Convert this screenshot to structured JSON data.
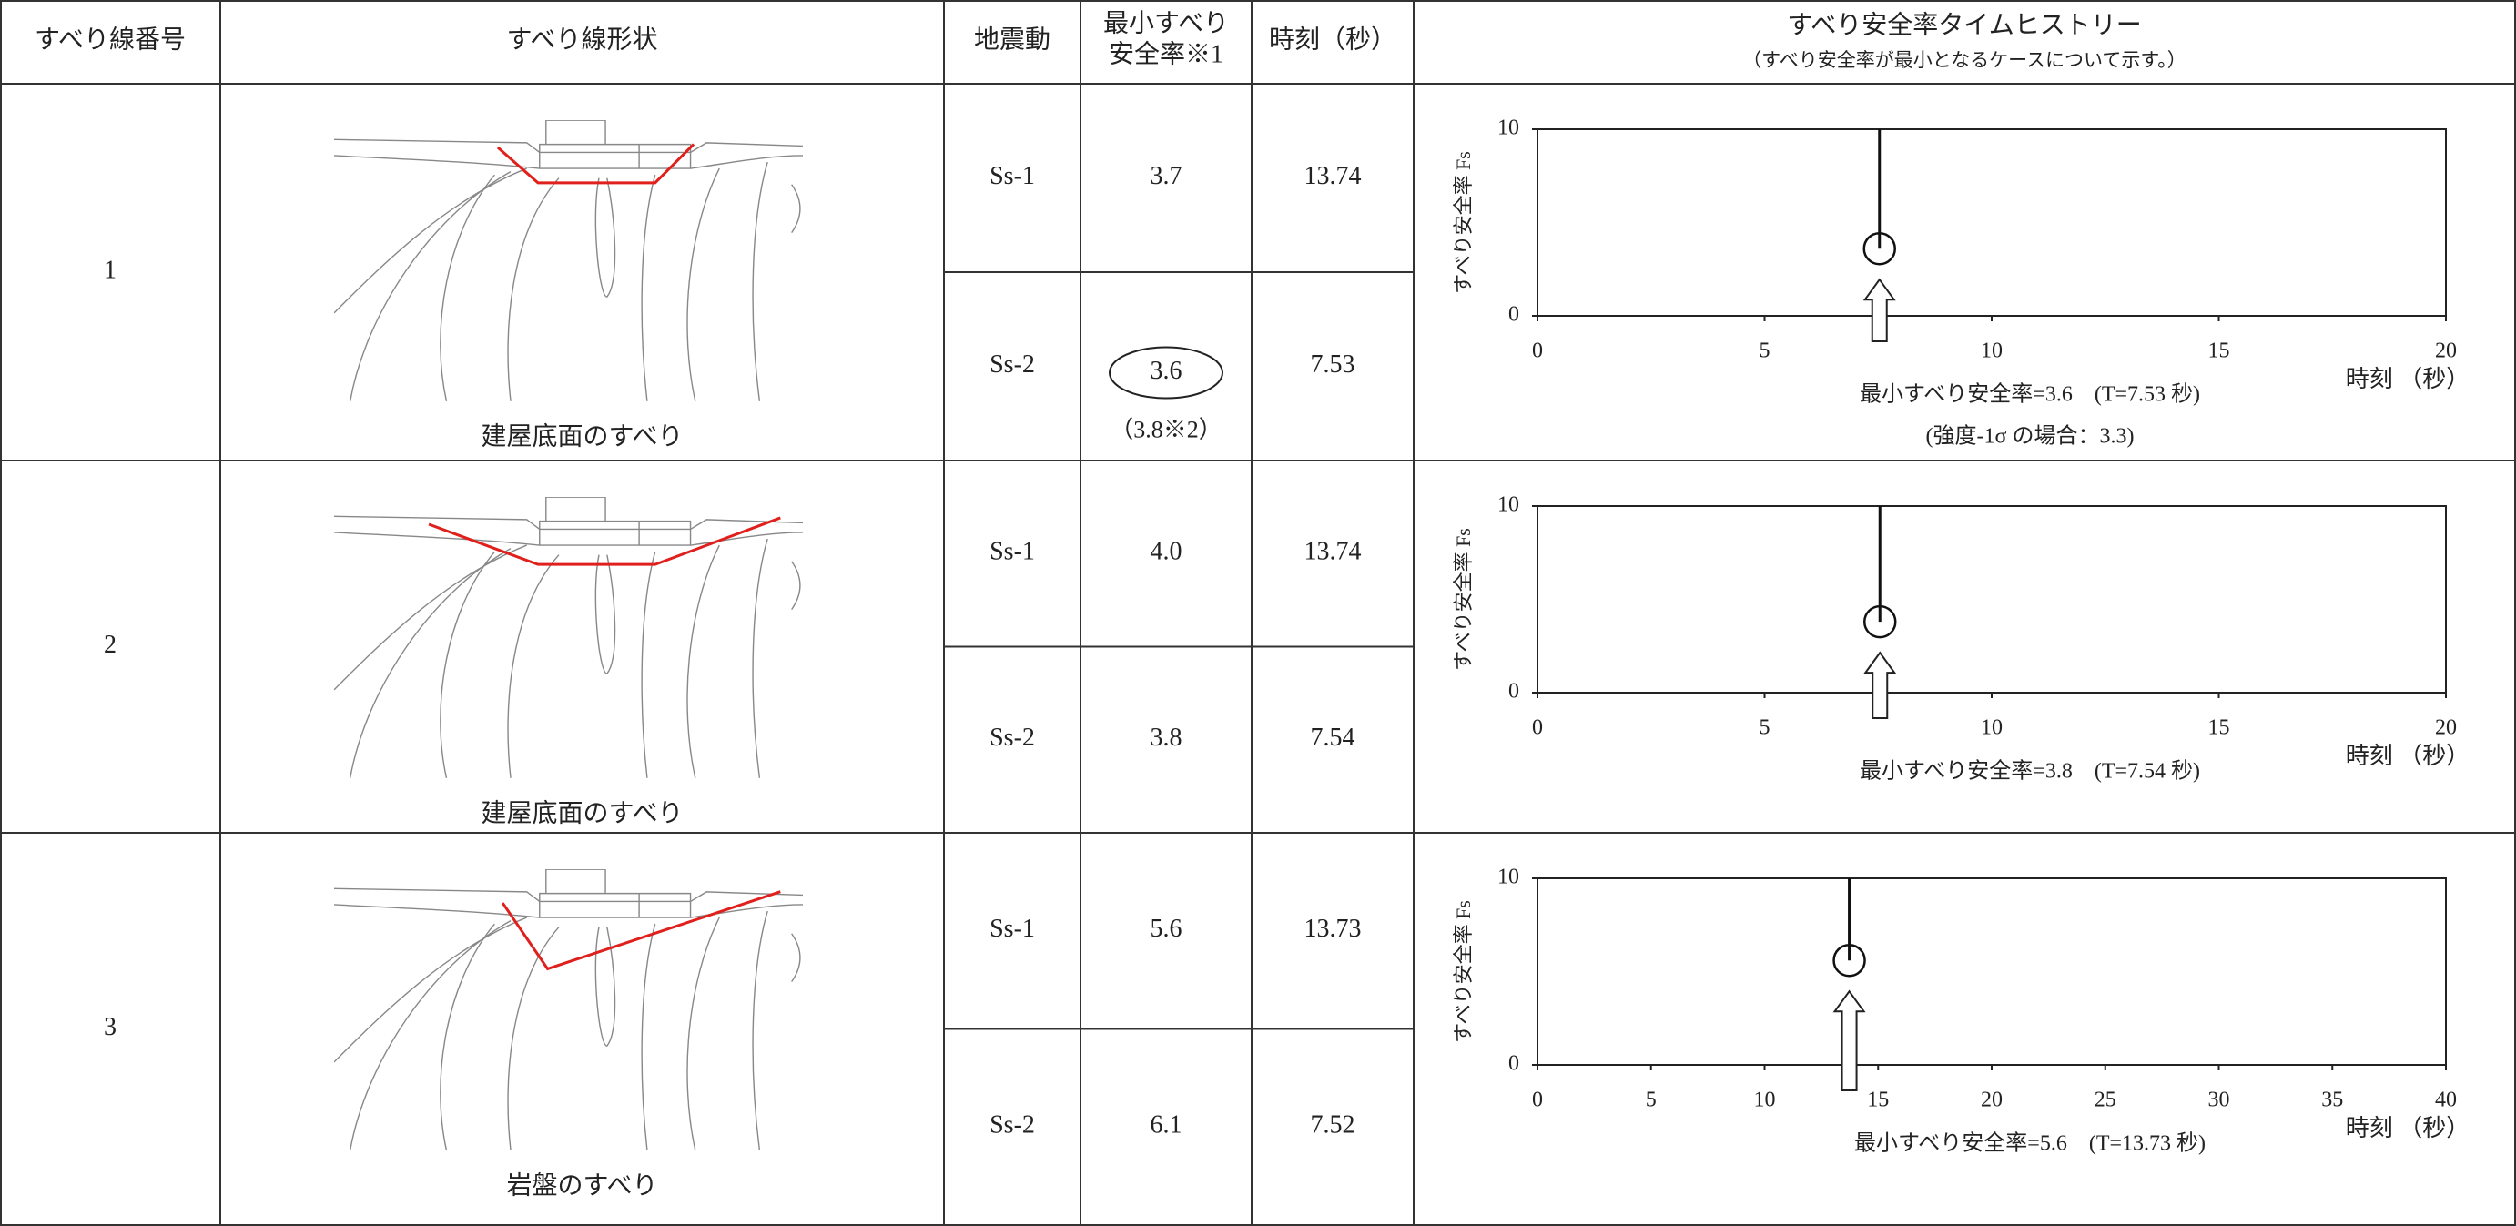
{
  "header": {
    "number": "すべり線番号",
    "shape": "すべり線形状",
    "motion": "地震動",
    "fs": [
      "最小すべり",
      "安全率※1"
    ],
    "time": "時刻（秒）",
    "history": "すべり安全率タイムヒストリー",
    "history_note": "（すべり安全率が最小となるケースについて示す。）"
  },
  "rows": [
    {
      "number": "1",
      "shape_caption": "建屋底面のすべり",
      "cases": [
        {
          "motion": "Ss-1",
          "fs": "3.7",
          "time": "13.74"
        },
        {
          "motion": "Ss-2",
          "fs": "3.6",
          "time": "7.53",
          "note": "（3.8※2）"
        }
      ],
      "chart": {
        "type": "line",
        "ylabel": "すべり安全率 Fs",
        "xlabel": "時刻 （秒）",
        "xlim": [
          0,
          20
        ],
        "xticks": [
          0,
          5,
          10,
          15,
          20
        ],
        "ylim": [
          0,
          10
        ],
        "yticks": [
          0,
          10
        ],
        "annotations": [
          "最小すべり安全率=3.6　(T=7.53 秒)",
          "(強度-1σ の場合：3.3)"
        ]
      }
    },
    {
      "number": "2",
      "shape_caption": "建屋底面のすべり",
      "cases": [
        {
          "motion": "Ss-1",
          "fs": "4.0",
          "time": "13.74"
        },
        {
          "motion": "Ss-2",
          "fs": "3.8",
          "time": "7.54"
        }
      ],
      "chart": {
        "type": "line",
        "ylabel": "すべり安全率 Fs",
        "xlabel": "時刻 （秒）",
        "xlim": [
          0,
          20
        ],
        "xticks": [
          0,
          5,
          10,
          15,
          20
        ],
        "ylim": [
          0,
          10
        ],
        "yticks": [
          0,
          10
        ],
        "annotations": [
          "最小すべり安全率=3.8　(T=7.54 秒)"
        ]
      }
    },
    {
      "number": "3",
      "shape_caption": "岩盤のすべり",
      "cases": [
        {
          "motion": "Ss-1",
          "fs": "5.6",
          "time": "13.73"
        },
        {
          "motion": "Ss-2",
          "fs": "6.1",
          "time": "7.52"
        }
      ],
      "chart": {
        "type": "line",
        "ylabel": "すべり安全率 Fs",
        "xlabel": "時刻 （秒）",
        "xlim": [
          0,
          40
        ],
        "xticks": [
          0,
          5,
          10,
          15,
          20,
          25,
          30,
          35,
          40
        ],
        "ylim": [
          0,
          10
        ],
        "yticks": [
          0,
          10
        ],
        "annotations": [
          "最小すべり安全率=5.6　(T=13.73 秒)"
        ]
      }
    }
  ]
}
